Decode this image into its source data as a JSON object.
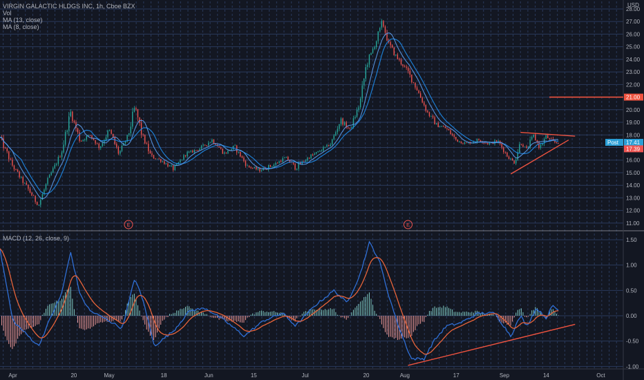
{
  "header": {
    "title": "VIRGIN GALACTIC HLDGS INC, 1h, Cboe BZX",
    "vol_label": "Vol",
    "ma1_label": "MA (13, close)",
    "ma2_label": "MA (8, close)",
    "macd_label": "MACD (12, 26, close, 9)"
  },
  "colors": {
    "background": "#131722",
    "grid": "#2a3a5c",
    "axis_text": "#b2b5be",
    "up_candle": "#26a69a",
    "down_candle": "#ef5350",
    "ma": "#2962ff",
    "macd_line": "#2f6fd6",
    "signal_line": "#e8643a",
    "trend_line": "#f0533f",
    "price_tag": "#2a9fd6",
    "resistance_tag": "#f0533f"
  },
  "chart_data": [
    {
      "type": "candlestick",
      "title": "VIRGIN GALACTIC HLDGS INC, 1h, Cboe BZX",
      "ylabel": "USD",
      "ylim": [
        10.5,
        28.6
      ],
      "y_ticks": [
        "28.00",
        "27.00",
        "26.00",
        "25.00",
        "24.00",
        "23.00",
        "22.00",
        "21.00",
        "20.00",
        "19.00",
        "18.00",
        "17.00",
        "16.00",
        "15.00",
        "14.00",
        "13.00",
        "12.00",
        "11.00"
      ],
      "x_tick_labels": [
        {
          "label": "Apr",
          "day": 0
        },
        {
          "label": "20",
          "day": 19
        },
        {
          "label": "May",
          "day": 30
        },
        {
          "label": "18",
          "day": 47
        },
        {
          "label": "Jun",
          "day": 61
        },
        {
          "label": "15",
          "day": 75
        },
        {
          "label": "Jul",
          "day": 91
        },
        {
          "label": "20",
          "day": 110
        },
        {
          "label": "Aug",
          "day": 122
        },
        {
          "label": "17",
          "day": 138
        },
        {
          "label": "Sep",
          "day": 153
        },
        {
          "label": "14",
          "day": 166
        },
        {
          "label": "Oct",
          "day": 183
        }
      ],
      "x_range_days": [
        -4,
        190
      ],
      "close_path": [
        {
          "day": -4,
          "close": 17.8
        },
        {
          "day": 0,
          "close": 15.5
        },
        {
          "day": 4,
          "close": 14.0
        },
        {
          "day": 8,
          "close": 12.4
        },
        {
          "day": 11,
          "close": 14.5
        },
        {
          "day": 15,
          "close": 16.5
        },
        {
          "day": 18,
          "close": 19.8
        },
        {
          "day": 21,
          "close": 17.5
        },
        {
          "day": 24,
          "close": 18.0
        },
        {
          "day": 27,
          "close": 17.0
        },
        {
          "day": 30,
          "close": 18.4
        },
        {
          "day": 33,
          "close": 16.5
        },
        {
          "day": 36,
          "close": 18.0
        },
        {
          "day": 38,
          "close": 20.3
        },
        {
          "day": 40,
          "close": 18.2
        },
        {
          "day": 43,
          "close": 16.3
        },
        {
          "day": 46,
          "close": 16.0
        },
        {
          "day": 50,
          "close": 15.3
        },
        {
          "day": 54,
          "close": 16.5
        },
        {
          "day": 58,
          "close": 16.9
        },
        {
          "day": 62,
          "close": 17.6
        },
        {
          "day": 66,
          "close": 16.5
        },
        {
          "day": 69,
          "close": 17.1
        },
        {
          "day": 73,
          "close": 15.5
        },
        {
          "day": 77,
          "close": 15.2
        },
        {
          "day": 81,
          "close": 15.6
        },
        {
          "day": 85,
          "close": 16.2
        },
        {
          "day": 88,
          "close": 15.4
        },
        {
          "day": 92,
          "close": 16.2
        },
        {
          "day": 96,
          "close": 16.8
        },
        {
          "day": 99,
          "close": 17.3
        },
        {
          "day": 102,
          "close": 19.2
        },
        {
          "day": 105,
          "close": 18.4
        },
        {
          "day": 108,
          "close": 20.5
        },
        {
          "day": 110,
          "close": 23.5
        },
        {
          "day": 113,
          "close": 25.4
        },
        {
          "day": 115,
          "close": 27.0
        },
        {
          "day": 117,
          "close": 25.2
        },
        {
          "day": 120,
          "close": 24.0
        },
        {
          "day": 123,
          "close": 23.0
        },
        {
          "day": 126,
          "close": 21.5
        },
        {
          "day": 129,
          "close": 19.8
        },
        {
          "day": 132,
          "close": 18.8
        },
        {
          "day": 135,
          "close": 18.5
        },
        {
          "day": 138,
          "close": 17.6
        },
        {
          "day": 141,
          "close": 17.3
        },
        {
          "day": 145,
          "close": 17.6
        },
        {
          "day": 148,
          "close": 17.3
        },
        {
          "day": 151,
          "close": 17.5
        },
        {
          "day": 154,
          "close": 16.3
        },
        {
          "day": 156,
          "close": 15.8
        },
        {
          "day": 158,
          "close": 17.4
        },
        {
          "day": 160,
          "close": 16.8
        },
        {
          "day": 162,
          "close": 18.0
        },
        {
          "day": 164,
          "close": 17.0
        },
        {
          "day": 166,
          "close": 17.9
        },
        {
          "day": 168,
          "close": 17.4
        },
        {
          "day": 170,
          "close": 17.39
        }
      ],
      "earnings_markers": [
        {
          "label": "E",
          "day": 36
        },
        {
          "label": "E",
          "day": 123
        }
      ],
      "annotations": [
        {
          "kind": "line",
          "x": [
            158,
            175
          ],
          "y": [
            18.2,
            17.9
          ]
        },
        {
          "kind": "line",
          "x": [
            155,
            173
          ],
          "y": [
            14.9,
            17.6
          ]
        },
        {
          "kind": "horizontal-level",
          "x": [
            167,
            190
          ],
          "y": 21.0
        }
      ],
      "price_tags": [
        {
          "label": "21.00",
          "value": 21.0,
          "kind": "resistance"
        },
        {
          "label": "17.41",
          "value": 17.41,
          "prefix": "Post",
          "kind": "last"
        },
        {
          "label": "17.39",
          "value": 17.39,
          "kind": "close"
        }
      ]
    },
    {
      "type": "macd",
      "title": "MACD (12, 26, close, 9)",
      "ylim": [
        -1.05,
        1.65
      ],
      "y_ticks": [
        "1.50",
        "1.00",
        "0.50",
        "0.00",
        "-0.50",
        "-1.00"
      ],
      "macd_path": [
        {
          "day": -4,
          "value": 1.3
        },
        {
          "day": 0,
          "value": -0.1
        },
        {
          "day": 8,
          "value": -0.6
        },
        {
          "day": 12,
          "value": 0.0
        },
        {
          "day": 15,
          "value": 0.4
        },
        {
          "day": 18,
          "value": 1.25
        },
        {
          "day": 21,
          "value": 0.4
        },
        {
          "day": 24,
          "value": 0.1
        },
        {
          "day": 30,
          "value": -0.1
        },
        {
          "day": 34,
          "value": -0.25
        },
        {
          "day": 38,
          "value": 0.75
        },
        {
          "day": 41,
          "value": 0.2
        },
        {
          "day": 44,
          "value": -0.6
        },
        {
          "day": 50,
          "value": -0.3
        },
        {
          "day": 55,
          "value": 0.1
        },
        {
          "day": 60,
          "value": 0.15
        },
        {
          "day": 66,
          "value": -0.1
        },
        {
          "day": 72,
          "value": -0.4
        },
        {
          "day": 78,
          "value": -0.1
        },
        {
          "day": 84,
          "value": 0.05
        },
        {
          "day": 88,
          "value": -0.2
        },
        {
          "day": 94,
          "value": 0.2
        },
        {
          "day": 100,
          "value": 0.5
        },
        {
          "day": 104,
          "value": 0.25
        },
        {
          "day": 108,
          "value": 0.8
        },
        {
          "day": 111,
          "value": 1.45
        },
        {
          "day": 114,
          "value": 1.1
        },
        {
          "day": 117,
          "value": 0.4
        },
        {
          "day": 120,
          "value": -0.2
        },
        {
          "day": 124,
          "value": -0.85
        },
        {
          "day": 128,
          "value": -0.85
        },
        {
          "day": 131,
          "value": -0.5
        },
        {
          "day": 135,
          "value": -0.2
        },
        {
          "day": 139,
          "value": -0.15
        },
        {
          "day": 145,
          "value": 0.05
        },
        {
          "day": 150,
          "value": 0.05
        },
        {
          "day": 155,
          "value": -0.4
        },
        {
          "day": 158,
          "value": 0.0
        },
        {
          "day": 160,
          "value": -0.2
        },
        {
          "day": 163,
          "value": 0.15
        },
        {
          "day": 166,
          "value": -0.05
        },
        {
          "day": 168,
          "value": 0.2
        },
        {
          "day": 170,
          "value": 0.1
        }
      ],
      "annotations": [
        {
          "kind": "line",
          "x": [
            123,
            175
          ],
          "y": [
            -0.98,
            -0.17
          ]
        }
      ]
    }
  ]
}
